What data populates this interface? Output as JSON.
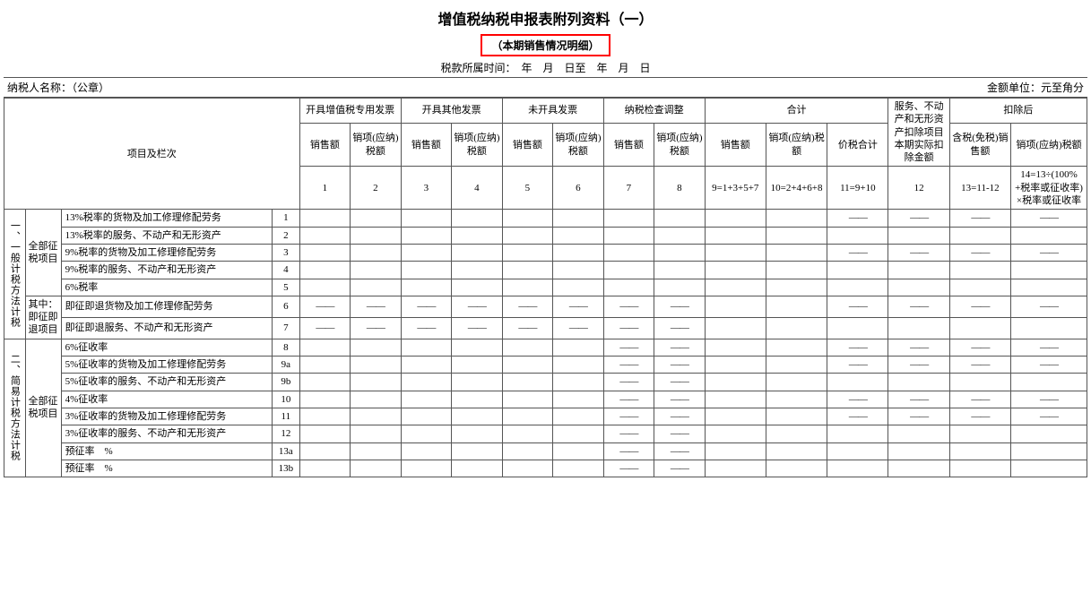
{
  "title": "增值税纳税申报表附列资料（一）",
  "subtitle": "（本期销售情况明细）",
  "period_label": "税款所属时间：　年　月　日至　年　月　日",
  "taxpayer_label": "纳税人名称：（公章）",
  "unit_label": "金额单位：元至角分",
  "hdr": {
    "item_col": "项目及栏次",
    "g1": "开具增值税专用发票",
    "g2": "开具其他发票",
    "g3": "未开具发票",
    "g4": "纳税检查调整",
    "g5": "合计",
    "g6": "服务、不动产和无形资产扣除项目本期实际扣除金额",
    "g7": "扣除后",
    "sales": "销售额",
    "tax": "销项(应纳)税额",
    "tax_ying": "销项(应纳)税额",
    "price_tax": "价税合计",
    "incl_tax_sales": "含税(免税)销售额",
    "col9f": "9=1+3+5+7",
    "col10f": "10=2+4+6+8",
    "col11f": "11=9+10",
    "col13f": "13=11-12",
    "col14f": "14=13÷(100%+税率或征收率)×税率或征收率"
  },
  "sections": {
    "s1": "一、一般计税方法计税",
    "s2": "二、简易计税方法计税",
    "cat_all": "全部征税项目",
    "cat_jzjt": "其中：即征即退项目"
  },
  "rows": {
    "r1": {
      "n": "1",
      "label": "13%税率的货物及加工修理修配劳务"
    },
    "r2": {
      "n": "2",
      "label": "13%税率的服务、不动产和无形资产"
    },
    "r3": {
      "n": "3",
      "label": "9%税率的货物及加工修理修配劳务"
    },
    "r4": {
      "n": "4",
      "label": "9%税率的服务、不动产和无形资产"
    },
    "r5": {
      "n": "5",
      "label": "6%税率"
    },
    "r6": {
      "n": "6",
      "label": "即征即退货物及加工修理修配劳务"
    },
    "r7": {
      "n": "7",
      "label": "即征即退服务、不动产和无形资产"
    },
    "r8": {
      "n": "8",
      "label": "6%征收率"
    },
    "r9a": {
      "n": "9a",
      "label": "5%征收率的货物及加工修理修配劳务"
    },
    "r9b": {
      "n": "9b",
      "label": "5%征收率的服务、不动产和无形资产"
    },
    "r10": {
      "n": "10",
      "label": "4%征收率"
    },
    "r11": {
      "n": "11",
      "label": "3%征收率的货物及加工修理修配劳务"
    },
    "r12": {
      "n": "12",
      "label": "3%征收率的服务、不动产和无形资产"
    },
    "r13a": {
      "n": "13a",
      "label": "预征率　%"
    },
    "r13b": {
      "n": "13b",
      "label": "预征率　%"
    }
  },
  "dash": "——",
  "colors": {
    "highlight_border": "#ff0000",
    "grid": "#555555",
    "bg": "#ffffff"
  },
  "font": {
    "body_pt": 12,
    "title_pt": 16
  }
}
